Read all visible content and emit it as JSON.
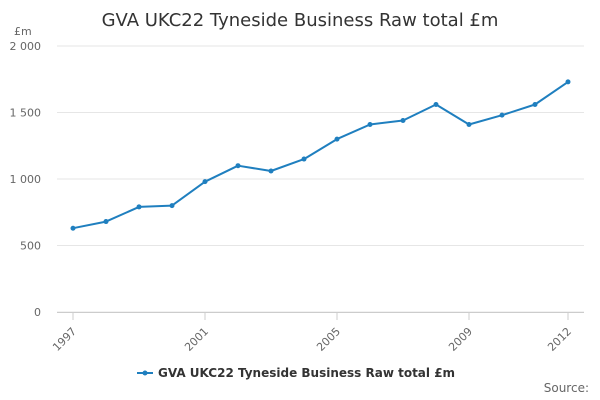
{
  "chart_data": {
    "type": "line",
    "title": "GVA UKC22 Tyneside Business Raw total £m",
    "y_unit": "£m",
    "xlabel": "",
    "ylabel": "",
    "ylim": [
      0,
      2000
    ],
    "y_ticks": [
      0,
      500,
      1000,
      1500,
      2000
    ],
    "y_tick_labels": [
      "0",
      "500",
      "1 000",
      "1 500",
      "2 000"
    ],
    "xlim": [
      1997,
      2012
    ],
    "x_ticks": [
      1997,
      2001,
      2005,
      2009,
      2012
    ],
    "x_tick_labels": [
      "1997",
      "2001",
      "2005",
      "2009",
      "2012"
    ],
    "grid": "horizontal",
    "legend_position": "bottom",
    "series": [
      {
        "name": "GVA UKC22 Tyneside Business Raw total £m",
        "color": "#1f7fbf",
        "x": [
          1997,
          1998,
          1999,
          2000,
          2001,
          2002,
          2003,
          2004,
          2005,
          2006,
          2007,
          2008,
          2009,
          2010,
          2011,
          2012
        ],
        "values": [
          630,
          680,
          790,
          800,
          980,
          1100,
          1060,
          1150,
          1300,
          1410,
          1440,
          1560,
          1410,
          1480,
          1560,
          1730
        ]
      }
    ]
  },
  "footer": {
    "source": "Source:"
  }
}
